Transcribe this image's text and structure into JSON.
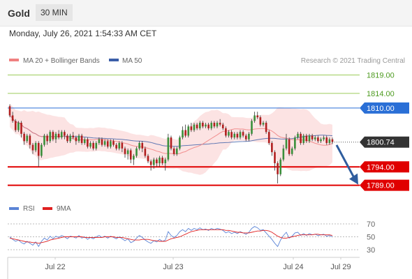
{
  "header": {
    "title": "Gold",
    "timeframe": "30 MIN"
  },
  "datetime": "Monday, July 26, 2021 1:54:33 AM CET",
  "legend": {
    "ma20": "MA 20 + Bollinger Bands",
    "ma50": "MA 50",
    "copyright": "Research © 2021 Trading Central"
  },
  "colors": {
    "up": "#3a8f3a",
    "down": "#b01f1f",
    "ma20": "#f08080",
    "ma50": "#3b5ea8",
    "band": "#fbd9d9",
    "resistance_line": "#9ccc5a",
    "resistance_label": "#4c9a1e",
    "pivot": "#2a6fd6",
    "support": "#e00000",
    "rsi": "#5b84d6",
    "rsi_ma": "#e02020",
    "current": "#333333",
    "arrow": "#2f5d9e"
  },
  "chart_data": [
    {
      "type": "candlestick",
      "title": "Gold",
      "timeframe": "30 MIN",
      "ylim": [
        1786,
        1822
      ],
      "x_labels": [
        "Jul 22",
        "Jul 23",
        "Jul 24",
        "Jul 29"
      ],
      "levels": [
        {
          "label": "1819.00",
          "value": 1819.0,
          "kind": "resistance"
        },
        {
          "label": "1814.00",
          "value": 1814.0,
          "kind": "resistance"
        },
        {
          "label": "1810.00",
          "value": 1810.0,
          "kind": "pivot"
        },
        {
          "label": "1794.00",
          "value": 1794.0,
          "kind": "support"
        },
        {
          "label": "1789.00",
          "value": 1789.0,
          "kind": "support"
        }
      ],
      "current_price": {
        "label": "1800.74",
        "value": 1800.74
      },
      "forecast_arrow": {
        "from": 1800.7,
        "to": 1789.0
      },
      "series": [
        {
          "name": "MA 20 + Bollinger Bands"
        },
        {
          "name": "MA 50"
        }
      ],
      "candles": [
        [
          1810.5,
          1808.0,
          1811.0,
          1807.5
        ],
        [
          1808.0,
          1806.5,
          1809.0,
          1806.0
        ],
        [
          1806.5,
          1804.0,
          1807.0,
          1803.5
        ],
        [
          1804.0,
          1806.0,
          1806.5,
          1803.5
        ],
        [
          1806.0,
          1803.0,
          1806.5,
          1802.0
        ],
        [
          1803.0,
          1801.0,
          1803.5,
          1800.0
        ],
        [
          1801.0,
          1802.5,
          1803.0,
          1800.5
        ],
        [
          1802.5,
          1800.0,
          1803.0,
          1799.0
        ],
        [
          1800.0,
          1798.5,
          1800.5,
          1797.5
        ],
        [
          1798.5,
          1800.5,
          1801.0,
          1798.0
        ],
        [
          1800.5,
          1797.0,
          1801.0,
          1794.0
        ],
        [
          1797.0,
          1800.0,
          1800.5,
          1796.5
        ],
        [
          1800.0,
          1802.5,
          1803.0,
          1799.5
        ],
        [
          1802.5,
          1801.0,
          1803.0,
          1800.0
        ],
        [
          1801.0,
          1803.5,
          1804.0,
          1800.5
        ],
        [
          1803.5,
          1801.5,
          1804.0,
          1801.0
        ],
        [
          1801.5,
          1803.0,
          1803.5,
          1800.5
        ],
        [
          1803.0,
          1802.0,
          1804.0,
          1801.5
        ],
        [
          1802.0,
          1803.5,
          1804.0,
          1801.5
        ],
        [
          1803.5,
          1802.5,
          1804.0,
          1801.5
        ],
        [
          1802.5,
          1801.0,
          1803.0,
          1800.5
        ],
        [
          1801.0,
          1802.5,
          1803.0,
          1800.5
        ],
        [
          1802.5,
          1802.0,
          1803.5,
          1801.5
        ],
        [
          1802.0,
          1801.0,
          1802.5,
          1800.0
        ],
        [
          1801.0,
          1802.5,
          1803.0,
          1800.5
        ],
        [
          1802.5,
          1800.5,
          1803.0,
          1800.0
        ],
        [
          1800.5,
          1801.5,
          1802.0,
          1800.0
        ],
        [
          1801.5,
          1799.5,
          1802.0,
          1799.0
        ],
        [
          1799.5,
          1800.5,
          1801.0,
          1799.0
        ],
        [
          1800.5,
          1799.0,
          1801.0,
          1798.5
        ],
        [
          1799.0,
          1800.5,
          1801.0,
          1798.5
        ],
        [
          1800.5,
          1801.5,
          1802.0,
          1800.0
        ],
        [
          1801.5,
          1800.0,
          1802.0,
          1799.5
        ],
        [
          1800.0,
          1801.0,
          1801.5,
          1799.5
        ],
        [
          1801.0,
          1799.5,
          1801.5,
          1799.0
        ],
        [
          1799.5,
          1801.0,
          1801.5,
          1799.0
        ],
        [
          1801.0,
          1800.0,
          1801.5,
          1799.5
        ],
        [
          1800.0,
          1799.0,
          1800.5,
          1798.5
        ],
        [
          1799.0,
          1800.5,
          1801.0,
          1798.5
        ],
        [
          1800.5,
          1799.0,
          1801.0,
          1798.0
        ],
        [
          1799.0,
          1797.5,
          1799.5,
          1796.5
        ],
        [
          1797.5,
          1798.5,
          1799.0,
          1796.0
        ],
        [
          1798.5,
          1796.0,
          1799.0,
          1795.0
        ],
        [
          1796.0,
          1797.0,
          1797.5,
          1794.5
        ],
        [
          1797.0,
          1799.0,
          1799.5,
          1796.5
        ],
        [
          1799.0,
          1800.5,
          1801.0,
          1798.5
        ],
        [
          1800.5,
          1799.0,
          1801.0,
          1798.0
        ],
        [
          1799.0,
          1797.0,
          1799.5,
          1796.5
        ],
        [
          1797.0,
          1795.5,
          1797.5,
          1795.0
        ],
        [
          1795.5,
          1794.5,
          1796.0,
          1793.0
        ],
        [
          1794.5,
          1796.0,
          1796.5,
          1793.5
        ],
        [
          1796.0,
          1795.0,
          1796.5,
          1794.0
        ],
        [
          1795.0,
          1796.5,
          1797.0,
          1794.0
        ],
        [
          1796.5,
          1795.0,
          1797.0,
          1794.5
        ],
        [
          1795.0,
          1796.0,
          1796.5,
          1793.0
        ],
        [
          1796.0,
          1802.0,
          1803.0,
          1795.5
        ],
        [
          1802.0,
          1799.0,
          1802.5,
          1798.5
        ],
        [
          1799.0,
          1797.5,
          1799.5,
          1797.0
        ],
        [
          1797.5,
          1799.0,
          1799.5,
          1797.0
        ],
        [
          1799.0,
          1802.0,
          1802.5,
          1798.5
        ],
        [
          1802.0,
          1804.0,
          1805.0,
          1801.5
        ],
        [
          1804.0,
          1802.5,
          1805.5,
          1802.0
        ],
        [
          1802.5,
          1805.0,
          1805.5,
          1802.0
        ],
        [
          1805.0,
          1804.0,
          1806.0,
          1803.5
        ],
        [
          1804.0,
          1805.5,
          1806.0,
          1803.5
        ],
        [
          1805.5,
          1804.5,
          1806.0,
          1804.0
        ],
        [
          1804.5,
          1806.0,
          1806.5,
          1804.0
        ],
        [
          1806.0,
          1805.0,
          1806.5,
          1804.5
        ],
        [
          1805.0,
          1805.5,
          1806.0,
          1804.5
        ],
        [
          1805.5,
          1804.5,
          1806.0,
          1804.0
        ],
        [
          1804.5,
          1806.0,
          1806.5,
          1804.0
        ],
        [
          1806.0,
          1805.0,
          1806.5,
          1804.5
        ],
        [
          1805.0,
          1806.0,
          1806.5,
          1804.5
        ],
        [
          1806.0,
          1805.5,
          1807.0,
          1805.0
        ],
        [
          1805.5,
          1804.5,
          1806.0,
          1804.0
        ],
        [
          1804.5,
          1802.5,
          1805.0,
          1802.0
        ],
        [
          1802.5,
          1803.5,
          1804.0,
          1802.0
        ],
        [
          1803.5,
          1802.0,
          1804.0,
          1801.5
        ],
        [
          1802.0,
          1803.0,
          1803.5,
          1801.5
        ],
        [
          1803.0,
          1802.0,
          1803.5,
          1801.5
        ],
        [
          1802.0,
          1803.5,
          1804.0,
          1801.5
        ],
        [
          1803.5,
          1802.5,
          1804.0,
          1802.0
        ],
        [
          1802.5,
          1801.5,
          1803.0,
          1801.0
        ],
        [
          1801.5,
          1803.0,
          1803.5,
          1801.0
        ],
        [
          1803.0,
          1806.5,
          1807.0,
          1802.5
        ],
        [
          1806.5,
          1808.0,
          1809.0,
          1806.0
        ],
        [
          1808.0,
          1807.5,
          1809.0,
          1807.0
        ],
        [
          1807.5,
          1805.5,
          1808.0,
          1805.0
        ],
        [
          1805.5,
          1806.0,
          1806.5,
          1805.0
        ],
        [
          1806.0,
          1803.5,
          1806.5,
          1803.0
        ],
        [
          1803.5,
          1800.5,
          1804.0,
          1800.0
        ],
        [
          1800.5,
          1798.0,
          1801.0,
          1797.0
        ],
        [
          1798.0,
          1795.0,
          1798.5,
          1793.0
        ],
        [
          1795.0,
          1792.0,
          1795.5,
          1789.5
        ],
        [
          1792.0,
          1796.0,
          1796.5,
          1791.5
        ],
        [
          1796.0,
          1799.0,
          1800.0,
          1795.5
        ],
        [
          1799.0,
          1801.5,
          1803.0,
          1798.5
        ],
        [
          1801.5,
          1797.5,
          1802.0,
          1797.0
        ],
        [
          1797.5,
          1799.0,
          1799.5,
          1797.0
        ],
        [
          1799.0,
          1802.0,
          1802.5,
          1798.5
        ],
        [
          1802.0,
          1803.0,
          1803.5,
          1801.5
        ],
        [
          1803.0,
          1800.5,
          1803.5,
          1800.0
        ],
        [
          1800.5,
          1802.5,
          1803.0,
          1800.0
        ],
        [
          1802.5,
          1801.0,
          1803.0,
          1800.5
        ],
        [
          1801.0,
          1802.5,
          1803.0,
          1800.5
        ],
        [
          1802.5,
          1801.5,
          1803.0,
          1801.0
        ],
        [
          1801.5,
          1802.0,
          1802.5,
          1801.0
        ],
        [
          1802.0,
          1801.0,
          1802.5,
          1800.5
        ],
        [
          1801.0,
          1801.5,
          1802.0,
          1800.5
        ],
        [
          1801.5,
          1802.0,
          1802.5,
          1801.0
        ],
        [
          1802.0,
          1800.5,
          1802.5,
          1800.0
        ],
        [
          1800.5,
          1801.5,
          1802.0,
          1800.0
        ],
        [
          1801.5,
          1800.8,
          1802.0,
          1800.2
        ]
      ]
    },
    {
      "type": "line",
      "title": "RSI",
      "series": [
        {
          "name": "RSI",
          "values": [
            50,
            46,
            43,
            45,
            41,
            39,
            43,
            40,
            37,
            42,
            35,
            43,
            48,
            45,
            51,
            47,
            51,
            49,
            52,
            50,
            47,
            51,
            50,
            48,
            52,
            48,
            50,
            46,
            49,
            47,
            50,
            52,
            49,
            51,
            48,
            51,
            49,
            47,
            50,
            47,
            44,
            47,
            41,
            43,
            48,
            52,
            49,
            45,
            42,
            40,
            44,
            42,
            46,
            43,
            45,
            58,
            52,
            49,
            52,
            58,
            61,
            58,
            63,
            60,
            63,
            61,
            64,
            61,
            62,
            60,
            63,
            61,
            63,
            62,
            60,
            56,
            58,
            55,
            57,
            55,
            58,
            56,
            54,
            57,
            63,
            66,
            64,
            60,
            61,
            56,
            51,
            46,
            40,
            35,
            45,
            52,
            57,
            48,
            51,
            56,
            57,
            52,
            55,
            52,
            55,
            53,
            54,
            52,
            53,
            54,
            51,
            52,
            50
          ]
        },
        {
          "name": "9MA",
          "values": [
            48,
            47,
            46,
            45,
            44,
            43,
            42,
            42,
            41,
            41,
            40,
            41,
            42,
            43,
            45,
            46,
            47,
            48,
            49,
            50,
            50,
            50,
            50,
            50,
            50,
            50,
            49,
            49,
            49,
            49,
            49,
            49,
            49,
            50,
            50,
            50,
            50,
            49,
            49,
            49,
            48,
            47,
            46,
            45,
            45,
            45,
            46,
            46,
            46,
            45,
            44,
            44,
            43,
            43,
            43,
            45,
            47,
            48,
            49,
            50,
            52,
            54,
            56,
            58,
            59,
            60,
            61,
            61,
            61,
            61,
            61,
            61,
            61,
            61,
            61,
            60,
            60,
            59,
            58,
            57,
            57,
            56,
            56,
            56,
            57,
            58,
            59,
            59,
            60,
            60,
            59,
            57,
            54,
            51,
            49,
            48,
            48,
            49,
            50,
            51,
            52,
            53,
            53,
            53,
            53,
            53,
            54,
            54,
            53,
            53,
            53,
            53,
            52
          ]
        }
      ],
      "levels": [
        70,
        50,
        30
      ],
      "ylim": [
        25,
        75
      ]
    }
  ]
}
